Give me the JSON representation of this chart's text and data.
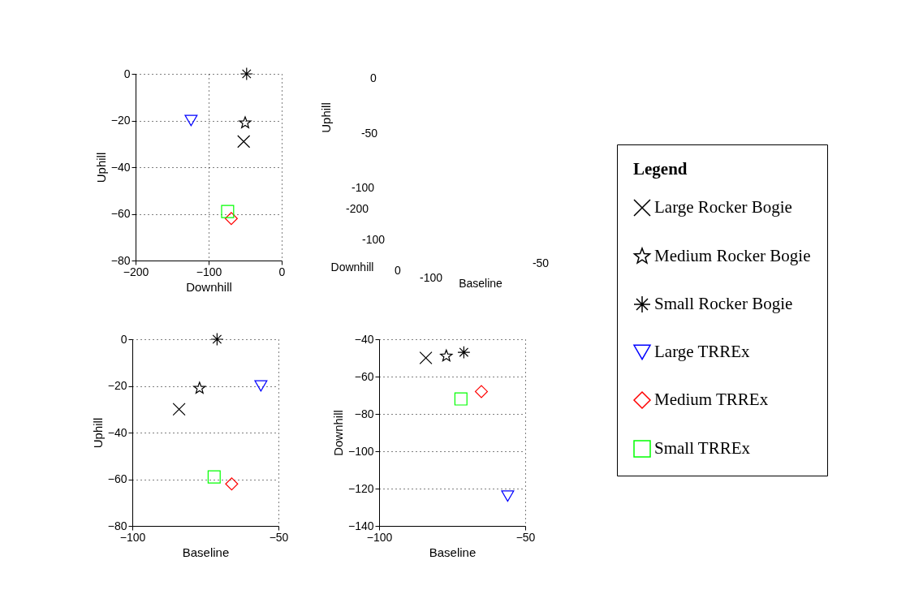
{
  "chart_data": [
    {
      "type": "scatter",
      "xlabel": "Downhill",
      "ylabel": "Uphill",
      "xlim": [
        -200,
        0
      ],
      "xticks": [
        -200,
        -100,
        0
      ],
      "ylim": [
        -80,
        0
      ],
      "yticks": [
        -80,
        -60,
        -40,
        -20,
        0
      ],
      "grid": true,
      "series": [
        {
          "color": "#000000",
          "x": [
            -52
          ],
          "values": [
            -29
          ]
        },
        {
          "color": "#000000",
          "marker": "star",
          "x": [
            -50
          ],
          "values": [
            -21
          ]
        },
        {
          "color": "#000000",
          "marker": "cross",
          "x": [
            -48
          ],
          "values": [
            0
          ]
        },
        {
          "color": "#0000ff",
          "marker": "triangle",
          "x": [
            -124
          ],
          "values": [
            -20
          ]
        },
        {
          "color": "#ff0000",
          "marker": "diamond",
          "x": [
            -69
          ],
          "values": [
            -62
          ]
        },
        {
          "color": "#00ff00",
          "marker": "square",
          "x": [
            -74
          ],
          "values": [
            -59
          ]
        }
      ]
    },
    {
      "type": "other",
      "xlabel": "Baseline",
      "ylabel": "Uphill",
      "annotations": [
        "0",
        "-50",
        "-100",
        "-200",
        "-100",
        "0",
        "-100",
        "-50",
        "Downhill"
      ]
    },
    {
      "type": "scatter",
      "xlabel": "Baseline",
      "ylabel": "Uphill",
      "xlim": [
        -100,
        -50
      ],
      "xticks": [
        -100,
        -50
      ],
      "ylim": [
        -80,
        0
      ],
      "yticks": [
        -80,
        -60,
        -40,
        -20,
        0
      ],
      "grid": true,
      "series": [
        {
          "color": "#000000",
          "x": [
            -84
          ],
          "values": [
            -30
          ]
        },
        {
          "color": "#000000",
          "marker": "star",
          "x": [
            -77
          ],
          "values": [
            -21
          ]
        },
        {
          "color": "#000000",
          "marker": "cross",
          "x": [
            -71
          ],
          "values": [
            0
          ]
        },
        {
          "color": "#0000ff",
          "marker": "triangle",
          "x": [
            -56
          ],
          "values": [
            -20
          ]
        },
        {
          "color": "#ff0000",
          "marker": "diamond",
          "x": [
            -66
          ],
          "values": [
            -62
          ]
        },
        {
          "color": "#00ff00",
          "marker": "square",
          "x": [
            -72
          ],
          "values": [
            -59
          ]
        }
      ]
    },
    {
      "type": "scatter",
      "xlabel": "Baseline",
      "ylabel": "Downhill",
      "xlim": [
        -100,
        -50
      ],
      "xticks": [
        -100,
        -50
      ],
      "ylim": [
        -140,
        -40
      ],
      "yticks": [
        -140,
        -120,
        -100,
        -80,
        -60,
        -40
      ],
      "grid": true,
      "legend": "right",
      "legend_title": "Legend",
      "series": [
        {
          "name": "Large Rocker Bogie",
          "color": "#000000",
          "x": [
            -84
          ],
          "values": [
            -50
          ]
        },
        {
          "name": "Medium Rocker Bogie",
          "color": "#000000",
          "marker": "star",
          "x": [
            -77
          ],
          "values": [
            -49
          ]
        },
        {
          "name": "Small Rocker Bogie",
          "color": "#000000",
          "marker": "cross",
          "x": [
            -71
          ],
          "values": [
            -47
          ]
        },
        {
          "name": "Large TRREx",
          "color": "#0000ff",
          "marker": "triangle",
          "x": [
            -56
          ],
          "values": [
            -124
          ]
        },
        {
          "name": "Medium TRREx",
          "color": "#ff0000",
          "marker": "diamond",
          "x": [
            -65
          ],
          "values": [
            -68
          ]
        },
        {
          "name": "Small TRREx",
          "color": "#00ff00",
          "marker": "square",
          "x": [
            -72
          ],
          "values": [
            -72
          ]
        }
      ]
    }
  ]
}
